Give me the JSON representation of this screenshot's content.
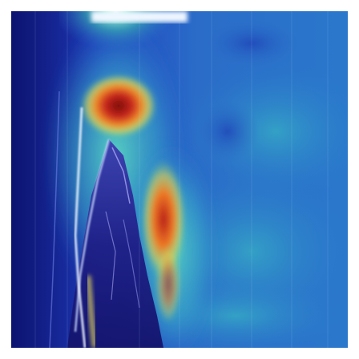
{
  "image": {
    "kind": "attention-heatmap-overlay",
    "colormap": "jet",
    "palette": {
      "deep_blue": "#101a8c",
      "blue": "#1c3fc4",
      "mid_blue": "#2a70d8",
      "cyan": "#3cc8dc",
      "teal": "#2ea6c8",
      "green": "#7cd67a",
      "yellow": "#f2e45a",
      "orange": "#ee8a2a",
      "red": "#c8281e",
      "dark_red": "#8c1410",
      "white": "#eef6ff",
      "lavender": "#a6a6f0"
    }
  }
}
